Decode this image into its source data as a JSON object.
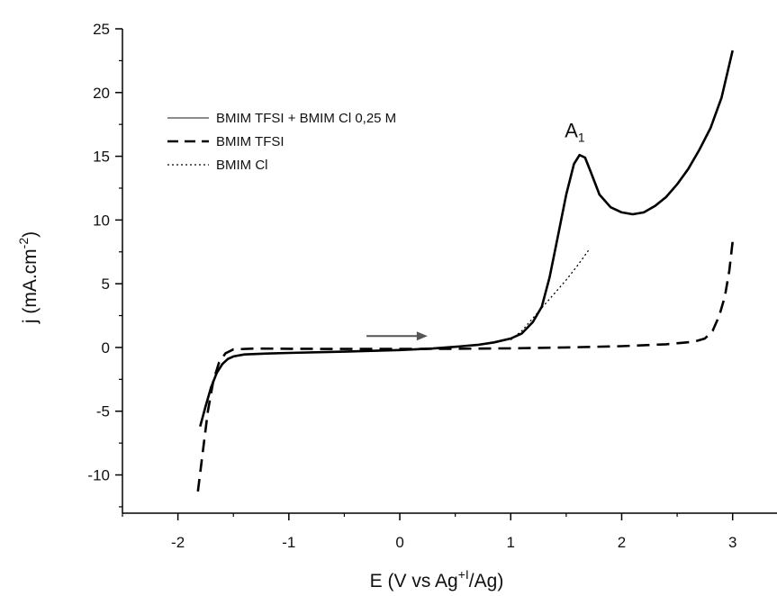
{
  "chart_data": {
    "type": "line",
    "xlabel": "E (V vs Ag",
    "xlabel_sup": "+I",
    "xlabel_end": "/Ag)",
    "ylabel": "j (mA.cm",
    "ylabel_sup": "-2",
    "ylabel_end": ")",
    "xlim": [
      -2.5,
      3.4
    ],
    "ylim": [
      -13,
      25
    ],
    "xticks": [
      -2,
      -1,
      0,
      1,
      2,
      3
    ],
    "yticks": [
      -10,
      -5,
      0,
      5,
      10,
      15,
      20,
      25
    ],
    "grid": false,
    "legend_position": "top-left",
    "annotation": {
      "text": "A",
      "subscript": "1",
      "x": 1.6,
      "y": 16.5
    },
    "scan_arrow": {
      "from": [
        -0.3,
        0.9
      ],
      "to": [
        0.25,
        0.9
      ]
    },
    "series": [
      {
        "name": "BMIM TFSI + BMIM Cl 0,25 M",
        "style": "solid",
        "color": "#000000",
        "points": [
          [
            -1.8,
            -6.2
          ],
          [
            -1.75,
            -4.6
          ],
          [
            -1.7,
            -3.1
          ],
          [
            -1.65,
            -2.0
          ],
          [
            -1.6,
            -1.3
          ],
          [
            -1.55,
            -0.9
          ],
          [
            -1.5,
            -0.7
          ],
          [
            -1.4,
            -0.55
          ],
          [
            -1.2,
            -0.48
          ],
          [
            -1.0,
            -0.43
          ],
          [
            -0.5,
            -0.33
          ],
          [
            0.0,
            -0.2
          ],
          [
            0.3,
            -0.08
          ],
          [
            0.5,
            0.05
          ],
          [
            0.7,
            0.2
          ],
          [
            0.85,
            0.4
          ],
          [
            1.0,
            0.7
          ],
          [
            1.1,
            1.1
          ],
          [
            1.2,
            2.0
          ],
          [
            1.28,
            3.2
          ],
          [
            1.35,
            5.5
          ],
          [
            1.42,
            8.5
          ],
          [
            1.5,
            12.0
          ],
          [
            1.57,
            14.4
          ],
          [
            1.62,
            15.1
          ],
          [
            1.67,
            14.9
          ],
          [
            1.72,
            13.8
          ],
          [
            1.8,
            12.0
          ],
          [
            1.9,
            11.0
          ],
          [
            2.0,
            10.6
          ],
          [
            2.1,
            10.45
          ],
          [
            2.2,
            10.6
          ],
          [
            2.3,
            11.1
          ],
          [
            2.4,
            11.8
          ],
          [
            2.5,
            12.8
          ],
          [
            2.6,
            14.0
          ],
          [
            2.7,
            15.5
          ],
          [
            2.8,
            17.2
          ],
          [
            2.9,
            19.6
          ],
          [
            3.0,
            23.3
          ]
        ]
      },
      {
        "name": "BMIM TFSI",
        "style": "dashed",
        "color": "#000000",
        "points": [
          [
            -1.82,
            -11.3
          ],
          [
            -1.78,
            -8.5
          ],
          [
            -1.73,
            -5.0
          ],
          [
            -1.68,
            -2.6
          ],
          [
            -1.63,
            -1.2
          ],
          [
            -1.57,
            -0.45
          ],
          [
            -1.5,
            -0.15
          ],
          [
            -1.3,
            -0.08
          ],
          [
            -1.0,
            -0.1
          ],
          [
            -0.5,
            -0.12
          ],
          [
            0.0,
            -0.12
          ],
          [
            0.5,
            -0.1
          ],
          [
            1.0,
            -0.07
          ],
          [
            1.5,
            0.0
          ],
          [
            2.0,
            0.1
          ],
          [
            2.4,
            0.25
          ],
          [
            2.65,
            0.45
          ],
          [
            2.75,
            0.7
          ],
          [
            2.82,
            1.3
          ],
          [
            2.88,
            2.5
          ],
          [
            2.93,
            4.0
          ],
          [
            2.97,
            6.0
          ],
          [
            3.0,
            8.3
          ]
        ]
      },
      {
        "name": "BMIM Cl",
        "style": "dotted",
        "color": "#000000",
        "points": [
          [
            1.0,
            0.6
          ],
          [
            1.1,
            1.3
          ],
          [
            1.2,
            2.3
          ],
          [
            1.3,
            3.3
          ],
          [
            1.4,
            4.3
          ],
          [
            1.5,
            5.3
          ],
          [
            1.6,
            6.4
          ],
          [
            1.7,
            7.6
          ]
        ]
      }
    ]
  }
}
